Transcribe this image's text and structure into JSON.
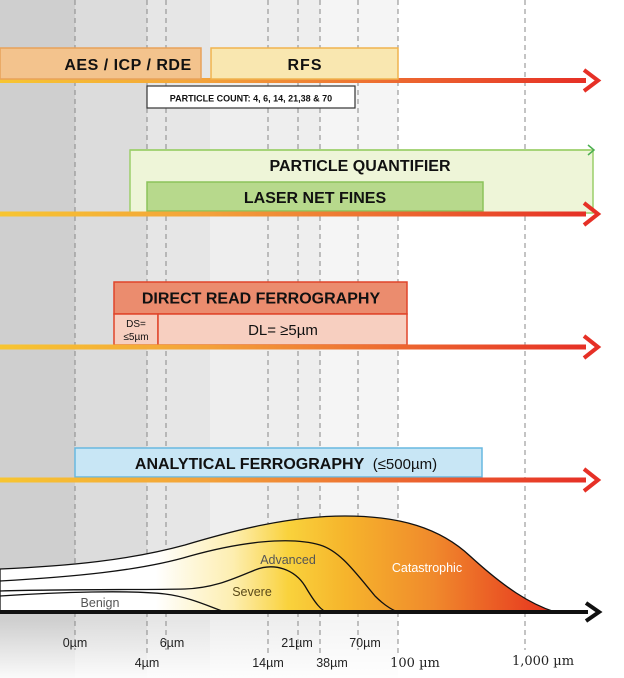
{
  "methods": {
    "aes": "AES / ICP / RDE",
    "rfs": "RFS",
    "particle_count": "PARTICLE COUNT: 4, 6, 14, 21,38 & 70",
    "particle_quantifier": "PARTICLE QUANTIFIER",
    "laser_net_fines": "LASER NET FINES",
    "direct_read": "DIRECT READ FERROGRAPHY",
    "ds_line1": "DS=",
    "ds_line2": "≤5µm",
    "dl": "DL= ≥5µm",
    "analytical": "ANALYTICAL FERROGRAPHY",
    "analytical_limit": "(≤500µm)"
  },
  "wear_modes": {
    "benign": "Benign",
    "severe": "Severe",
    "advanced": "Advanced",
    "catastrophic": "Catastrophic"
  },
  "axis_ticks": {
    "t0": "0µm",
    "t4": "4µm",
    "t6": "6µm",
    "t14": "14µm",
    "t21": "21µm",
    "t38": "38µm",
    "t70": "70µm",
    "t100": "100 µm",
    "t1000": "1,000 µm"
  },
  "colors": {
    "arrow_red": "#e63026",
    "arrow_yellow": "#f7c531",
    "aes_box": "#f3c38d",
    "rfs_box": "#f9e7b0",
    "pq_box": "#eef5d8",
    "lnf_box": "#b7d98c",
    "drf_box": "#eb8c6e",
    "dl_box": "#f7cfc0",
    "af_box": "#c8e6f5"
  }
}
